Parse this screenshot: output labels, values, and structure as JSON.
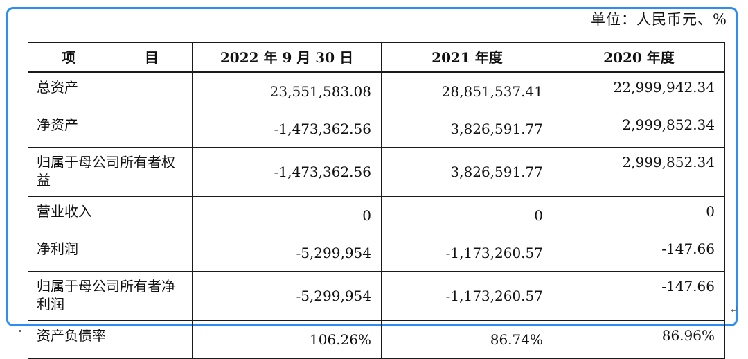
{
  "unit_note": "单位：人民币元、%",
  "table": {
    "headers": [
      "项目",
      "2022 年 9 月 30 日",
      "2021 年度",
      "2020 年度"
    ],
    "rows": [
      {
        "label": "总资产",
        "values": [
          "23,551,583.08",
          "28,851,537.41",
          "22,999,942.34"
        ]
      },
      {
        "label": "净资产",
        "values": [
          "-1,473,362.56",
          "3,826,591.77",
          "2,999,852.34"
        ]
      },
      {
        "label": "归属于母公司所有者权益",
        "values": [
          "-1,473,362.56",
          "3,826,591.77",
          "2,999,852.34"
        ]
      },
      {
        "label": "营业收入",
        "values": [
          "0",
          "0",
          "0"
        ]
      },
      {
        "label": "净利润",
        "values": [
          "-5,299,954",
          "-1,173,260.57",
          "-147.66"
        ]
      },
      {
        "label": "归属于母公司所有者净利润",
        "values": [
          "-5,299,954",
          "-1,173,260.57",
          "-147.66"
        ]
      },
      {
        "label": "资产负债率",
        "values": [
          "106.26%",
          "86.74%",
          "86.96%"
        ]
      }
    ]
  },
  "return_mark": "↵",
  "colors": {
    "frame": "#2d8ef0",
    "border": "#1a1a1a",
    "text": "#111111"
  }
}
